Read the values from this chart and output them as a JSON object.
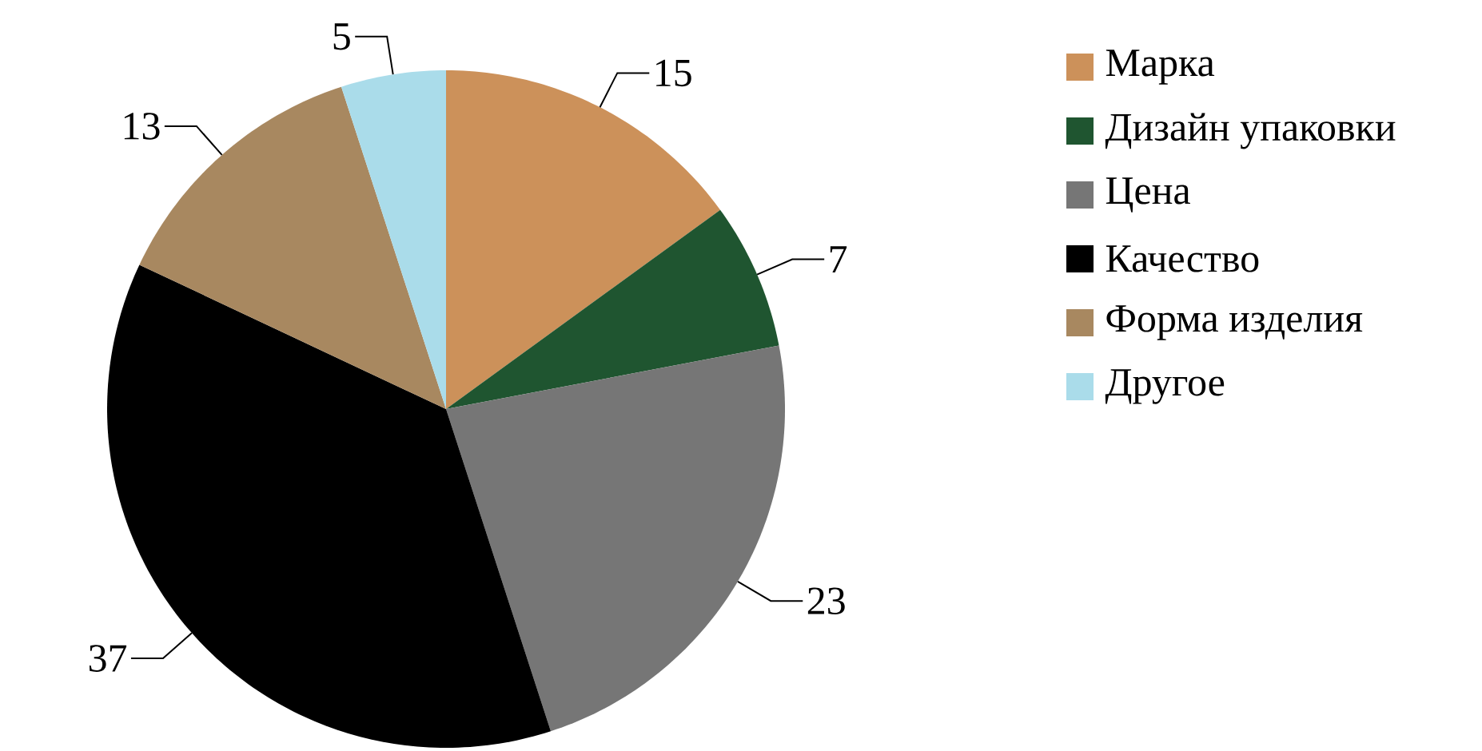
{
  "chart_data": {
    "type": "pie",
    "categories": [
      "Марка",
      "Дизайн упаковки",
      "Цена",
      "Качество",
      "Форма изделия",
      "Другое"
    ],
    "values": [
      15,
      7,
      23,
      37,
      13,
      5
    ],
    "colors": [
      "#cc915a",
      "#1f5530",
      "#767676",
      "#000000",
      "#a88860",
      "#aadcea"
    ],
    "data_labels": true,
    "legend": "right"
  }
}
